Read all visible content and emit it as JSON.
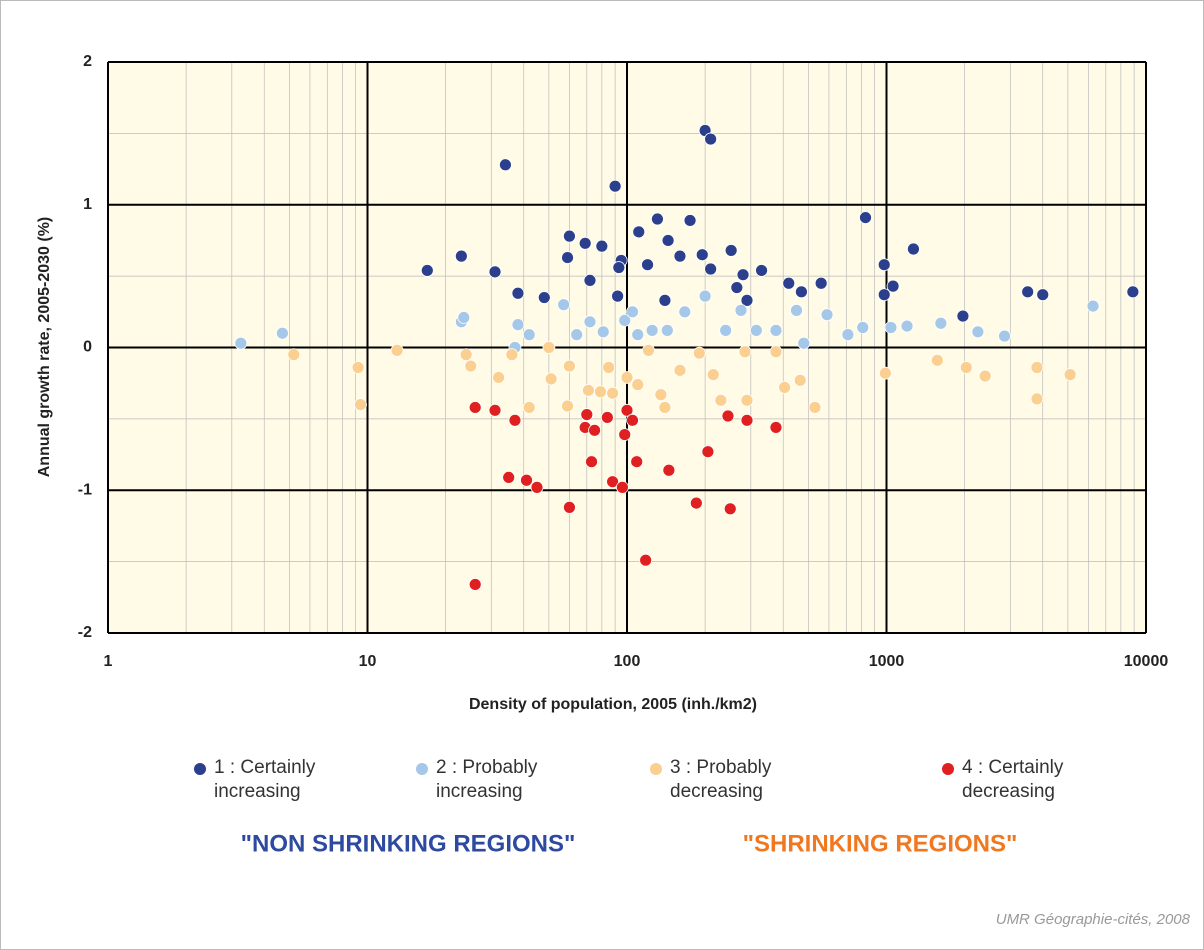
{
  "chart_data": {
    "type": "scatter",
    "xlabel": "Density of population, 2005 (inh./km2)",
    "ylabel": "Annual growth rate, 2005-2030 (%)",
    "xscale": "log",
    "xlim": [
      1,
      10000
    ],
    "xticks": [
      1,
      10,
      100,
      1000,
      10000
    ],
    "ylim": [
      -2,
      2
    ],
    "yticks": [
      -2,
      -1,
      0,
      1,
      2
    ],
    "grid": true,
    "annotations": [
      "\"NON SHRINKING REGIONS\"",
      "\"SHRINKING REGIONS\"",
      "UMR Géographie-cités, 2008"
    ],
    "series": [
      {
        "name": "1 : Certainly increasing",
        "color": "#2b3f8c",
        "x": [
          34,
          200,
          210,
          90,
          23,
          17,
          31,
          38,
          60,
          69,
          48,
          59,
          80,
          72,
          95,
          93,
          92,
          111,
          120,
          131,
          144,
          160,
          175,
          195,
          210,
          252,
          265,
          280,
          330,
          420,
          470,
          560,
          830,
          980,
          980,
          1060,
          1270,
          1970,
          3500,
          4000,
          8900,
          140,
          290
        ],
        "values": [
          1.28,
          1.52,
          1.46,
          1.13,
          0.64,
          0.54,
          0.53,
          0.38,
          0.78,
          0.73,
          0.35,
          0.63,
          0.71,
          0.47,
          0.61,
          0.56,
          0.36,
          0.81,
          0.58,
          0.9,
          0.75,
          0.64,
          0.89,
          0.65,
          0.55,
          0.68,
          0.42,
          0.51,
          0.54,
          0.45,
          0.39,
          0.45,
          0.91,
          0.37,
          0.58,
          0.43,
          0.69,
          0.22,
          0.39,
          0.37,
          0.39,
          0.33,
          0.33
        ]
      },
      {
        "name": "2 : Probably increasing",
        "color": "#a6c8e8",
        "x": [
          3.25,
          4.7,
          23,
          23.5,
          38,
          42,
          37,
          57,
          64,
          72,
          81,
          98,
          105,
          110,
          125,
          143,
          167,
          200,
          240,
          275,
          315,
          375,
          450,
          480,
          590,
          710,
          810,
          1040,
          1200,
          1620,
          2250,
          2850,
          6250
        ],
        "values": [
          0.03,
          0.1,
          0.18,
          0.21,
          0.16,
          0.09,
          0.0,
          0.3,
          0.09,
          0.18,
          0.11,
          0.19,
          0.25,
          0.09,
          0.12,
          0.12,
          0.25,
          0.36,
          0.12,
          0.26,
          0.12,
          0.12,
          0.26,
          0.03,
          0.23,
          0.09,
          0.14,
          0.14,
          0.15,
          0.17,
          0.11,
          0.08,
          0.29
        ]
      },
      {
        "name": "3 : Probably decreasing",
        "color": "#fbcf8f",
        "x": [
          5.2,
          9.2,
          9.4,
          13,
          24,
          25,
          32,
          36,
          42,
          50,
          51,
          60,
          59,
          71,
          79,
          85,
          88,
          100,
          110,
          121,
          135,
          140,
          160,
          190,
          215,
          230,
          285,
          290,
          375,
          405,
          465,
          530,
          990,
          1570,
          2030,
          2400,
          3800,
          3800,
          5100
        ],
        "values": [
          -0.05,
          -0.14,
          -0.4,
          -0.02,
          -0.05,
          -0.13,
          -0.21,
          -0.05,
          -0.42,
          0.0,
          -0.22,
          -0.13,
          -0.41,
          -0.3,
          -0.31,
          -0.14,
          -0.32,
          -0.21,
          -0.26,
          -0.02,
          -0.33,
          -0.42,
          -0.16,
          -0.04,
          -0.19,
          -0.37,
          -0.03,
          -0.37,
          -0.03,
          -0.28,
          -0.23,
          -0.42,
          -0.18,
          -0.09,
          -0.14,
          -0.2,
          -0.36,
          -0.14,
          -0.19
        ]
      },
      {
        "name": "4 : Certainly decreasing",
        "color": "#e02020",
        "x": [
          26,
          26,
          31,
          37,
          35,
          41,
          45,
          70,
          69,
          75,
          73,
          60,
          84,
          88,
          96,
          98,
          100,
          105,
          109,
          118,
          145,
          185,
          205,
          245,
          250,
          290,
          375
        ],
        "values": [
          -1.66,
          -0.42,
          -0.44,
          -0.51,
          -0.91,
          -0.93,
          -0.98,
          -0.47,
          -0.56,
          -0.58,
          -0.8,
          -1.12,
          -0.49,
          -0.94,
          -0.98,
          -0.61,
          -0.44,
          -0.51,
          -0.8,
          -1.49,
          -0.86,
          -1.09,
          -0.73,
          -0.48,
          -1.13,
          -0.51,
          -0.56
        ]
      }
    ]
  }
}
